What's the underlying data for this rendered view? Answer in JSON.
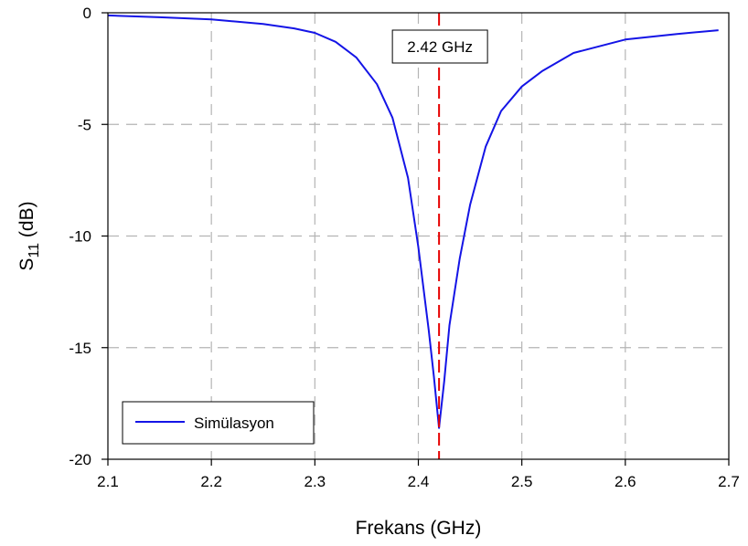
{
  "chart_data": {
    "type": "line",
    "xlabel": "Frekans (GHz)",
    "ylabel_main": "S",
    "ylabel_sub": "11",
    "ylabel_rest": " (dB)",
    "xlim": [
      2.1,
      2.7
    ],
    "ylim": [
      -20,
      0
    ],
    "xticks": [
      "2.1",
      "2.2",
      "2.3",
      "2.4",
      "2.5",
      "2.6",
      "2.7"
    ],
    "yticks": [
      "0",
      "-5",
      "-10",
      "-15",
      "-20"
    ],
    "grid": true,
    "legend_position": "bottom-left",
    "series": [
      {
        "name": "Simülasyon",
        "color": "#1414e6",
        "x": [
          2.1,
          2.15,
          2.2,
          2.25,
          2.28,
          2.3,
          2.32,
          2.34,
          2.36,
          2.375,
          2.39,
          2.4,
          2.41,
          2.415,
          2.42,
          2.425,
          2.43,
          2.44,
          2.45,
          2.465,
          2.48,
          2.5,
          2.52,
          2.55,
          2.6,
          2.65,
          2.69
        ],
        "y": [
          -0.12,
          -0.2,
          -0.3,
          -0.5,
          -0.7,
          -0.9,
          -1.3,
          -2.0,
          -3.2,
          -4.7,
          -7.4,
          -10.5,
          -14.2,
          -16.3,
          -18.6,
          -16.5,
          -14.0,
          -11.0,
          -8.6,
          -6.0,
          -4.4,
          -3.3,
          -2.6,
          -1.8,
          -1.2,
          -0.95,
          -0.78
        ]
      }
    ],
    "marker_line": {
      "x": 2.42,
      "color": "#e60000",
      "style": "dashed"
    },
    "annotation": {
      "text": "2.42 GHz"
    }
  }
}
